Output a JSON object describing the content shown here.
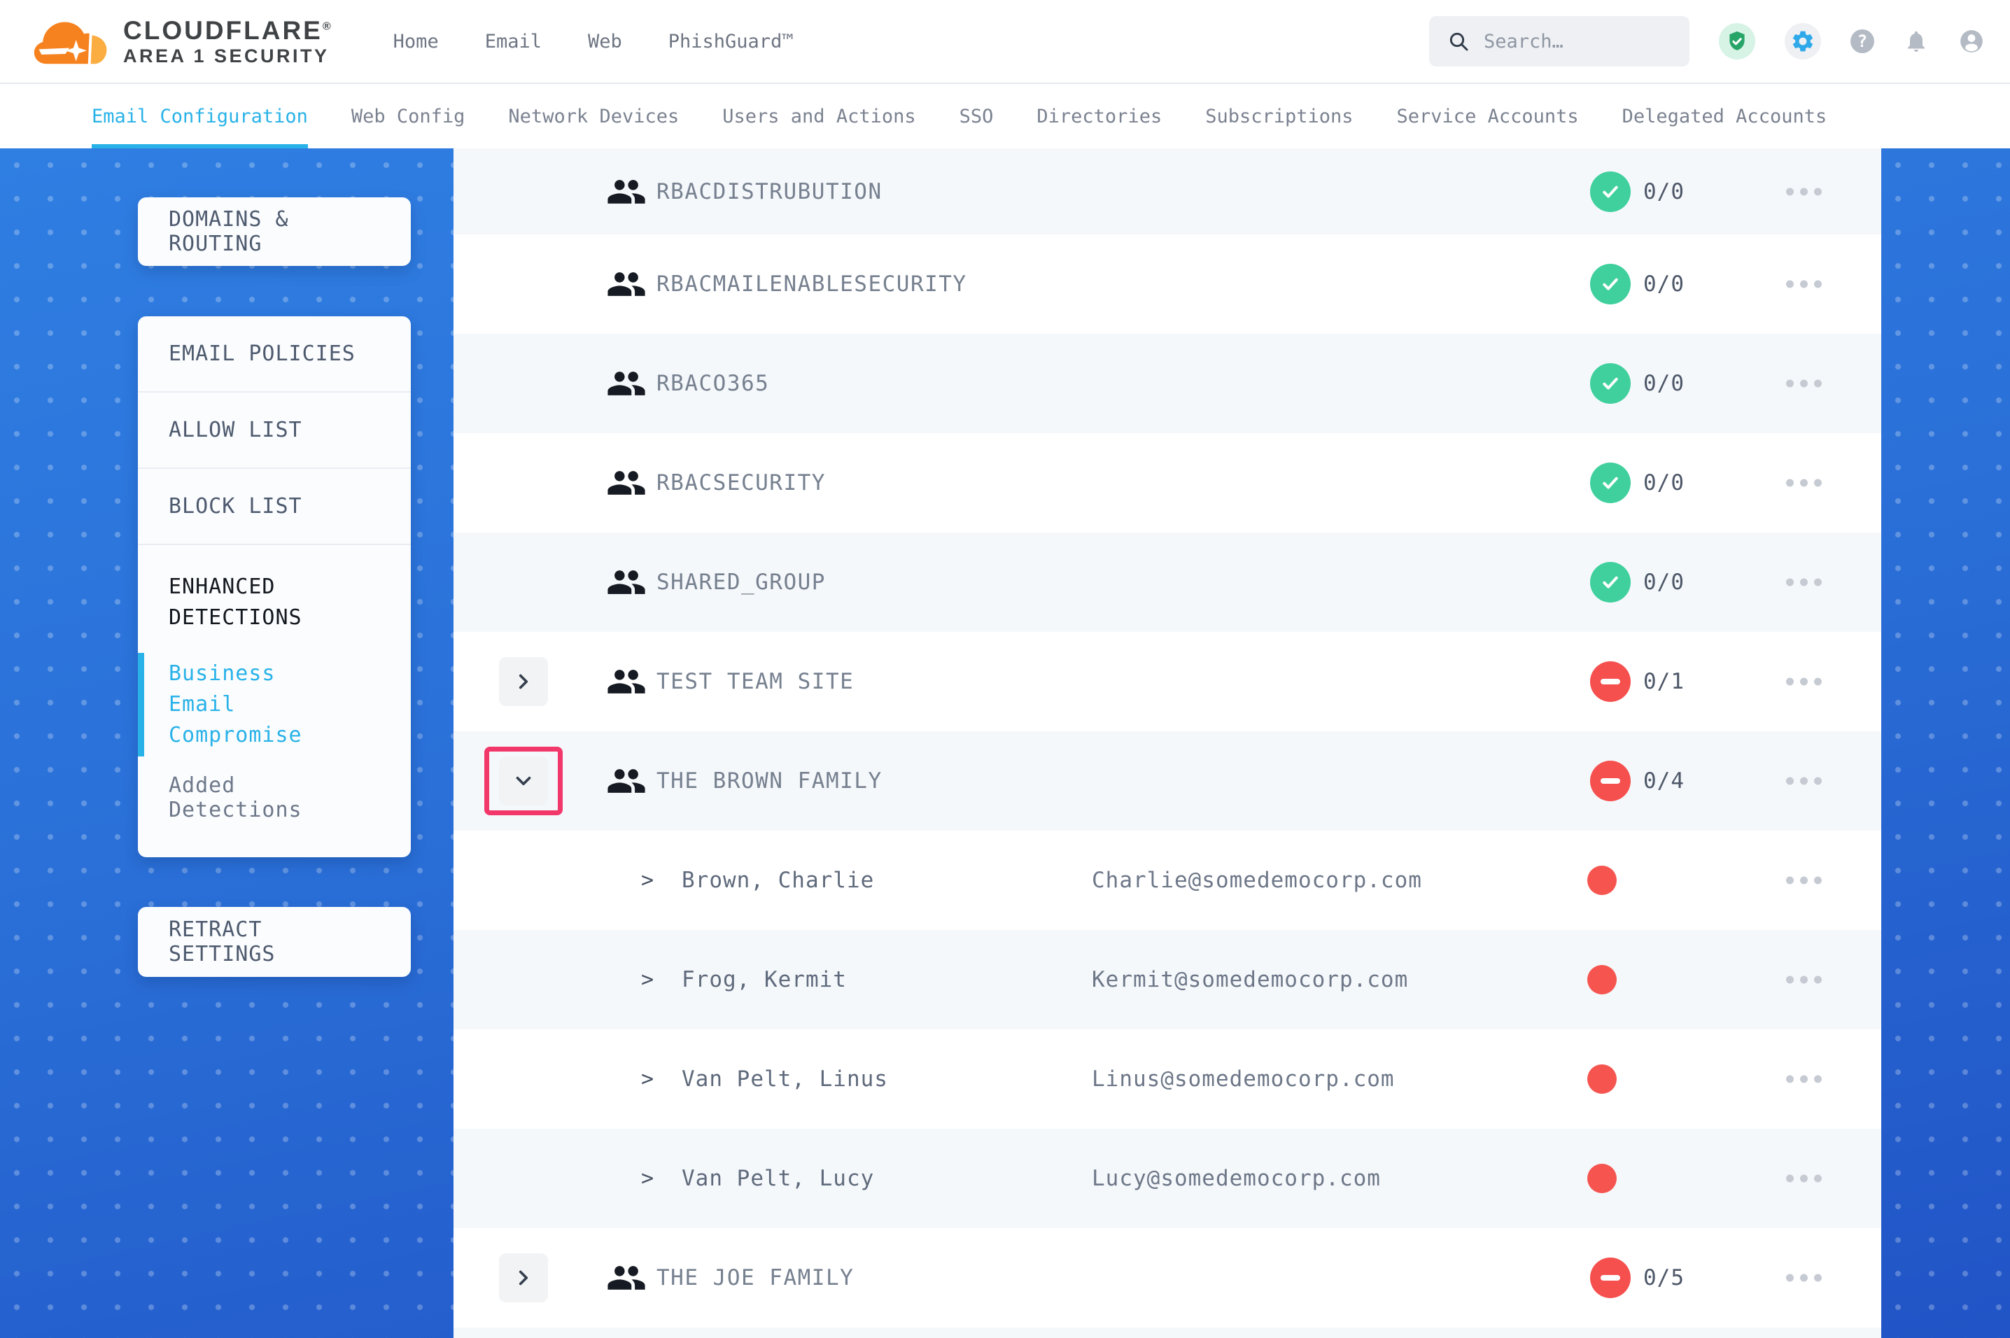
{
  "header": {
    "brand": {
      "name": "CLOUDFLARE",
      "mark": "®",
      "subtitle": "AREA 1 SECURITY"
    },
    "nav": [
      {
        "label": "Home"
      },
      {
        "label": "Email"
      },
      {
        "label": "Web"
      },
      {
        "label": "PhishGuard™"
      }
    ],
    "search": {
      "placeholder": "Search…"
    },
    "icons": {
      "help_glyph": "?"
    }
  },
  "tabs": [
    {
      "label": "Email Configuration",
      "active": true
    },
    {
      "label": "Web Config"
    },
    {
      "label": "Network Devices"
    },
    {
      "label": "Users and Actions"
    },
    {
      "label": "SSO"
    },
    {
      "label": "Directories"
    },
    {
      "label": "Subscriptions"
    },
    {
      "label": "Service Accounts"
    },
    {
      "label": "Delegated Accounts"
    }
  ],
  "sidebar": {
    "domains_routing": "DOMAINS & ROUTING",
    "email_policies": "EMAIL POLICIES",
    "allow_list": "ALLOW LIST",
    "block_list": "BLOCK LIST",
    "enhanced_detections": "ENHANCED DETECTIONS",
    "business_email_compromise": "Business Email Compromise",
    "added_detections": "Added Detections",
    "retract_settings": "RETRACT SETTINGS"
  },
  "table": {
    "member_chevron": ">",
    "rows": [
      {
        "kind": "group",
        "name": "RBACDISTRUBUTION",
        "status": "pass",
        "count": "0/0"
      },
      {
        "kind": "group",
        "name": "RBACMAILENABLESECURITY",
        "status": "pass",
        "count": "0/0"
      },
      {
        "kind": "group",
        "name": "RBACO365",
        "status": "pass",
        "count": "0/0"
      },
      {
        "kind": "group",
        "name": "RBACSECURITY",
        "status": "pass",
        "count": "0/0"
      },
      {
        "kind": "group",
        "name": "SHARED_GROUP",
        "status": "pass",
        "count": "0/0"
      },
      {
        "kind": "group",
        "name": "TEST TEAM SITE",
        "status": "fail",
        "count": "0/1",
        "expandable": true,
        "expanded": false
      },
      {
        "kind": "group",
        "name": "THE BROWN FAMILY",
        "status": "fail",
        "count": "0/4",
        "expandable": true,
        "expanded": true,
        "highlighted": true
      },
      {
        "kind": "member",
        "name": "Brown, Charlie",
        "email": "Charlie@somedemocorp.com",
        "status": "fail"
      },
      {
        "kind": "member",
        "name": "Frog, Kermit",
        "email": "Kermit@somedemocorp.com",
        "status": "fail"
      },
      {
        "kind": "member",
        "name": "Van Pelt, Linus",
        "email": "Linus@somedemocorp.com",
        "status": "fail"
      },
      {
        "kind": "member",
        "name": "Van Pelt, Lucy",
        "email": "Lucy@somedemocorp.com",
        "status": "fail"
      },
      {
        "kind": "group",
        "name": "THE JOE FAMILY",
        "status": "fail",
        "count": "0/5",
        "expandable": true,
        "expanded": false
      }
    ]
  },
  "colors": {
    "accent_cyan": "#29B2E8",
    "success_green": "#3FD09D",
    "danger_red": "#F5504E",
    "highlight_pink": "#F2386B",
    "blue_top": "#2F7EE2",
    "blue_bottom": "#2154C6"
  }
}
